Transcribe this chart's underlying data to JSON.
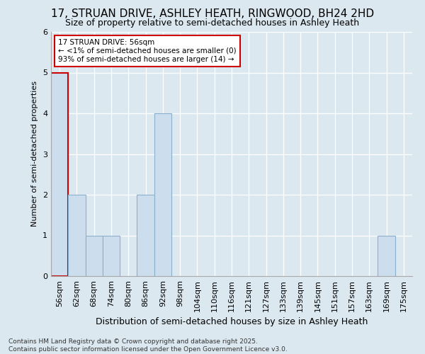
{
  "title": "17, STRUAN DRIVE, ASHLEY HEATH, RINGWOOD, BH24 2HD",
  "subtitle": "Size of property relative to semi-detached houses in Ashley Heath",
  "xlabel": "Distribution of semi-detached houses by size in Ashley Heath",
  "ylabel": "Number of semi-detached properties",
  "footnote": "Contains HM Land Registry data © Crown copyright and database right 2025.\nContains public sector information licensed under the Open Government Licence v3.0.",
  "categories": [
    "56sqm",
    "62sqm",
    "68sqm",
    "74sqm",
    "80sqm",
    "86sqm",
    "92sqm",
    "98sqm",
    "104sqm",
    "110sqm",
    "116sqm",
    "121sqm",
    "127sqm",
    "133sqm",
    "139sqm",
    "145sqm",
    "151sqm",
    "157sqm",
    "163sqm",
    "169sqm",
    "175sqm"
  ],
  "values": [
    5,
    2,
    1,
    1,
    0,
    2,
    4,
    0,
    0,
    0,
    0,
    0,
    0,
    0,
    0,
    0,
    0,
    0,
    0,
    1,
    0
  ],
  "bar_color": "#ccdded",
  "bar_edge_color": "#8ab0cc",
  "highlight_index": 0,
  "highlight_edge_color": "#cc0000",
  "annotation_line1": "17 STRUAN DRIVE: 56sqm",
  "annotation_line2": "← <1% of semi-detached houses are smaller (0)",
  "annotation_line3": "93% of semi-detached houses are larger (14) →",
  "annotation_box_color": "white",
  "annotation_box_edge": "#cc0000",
  "ylim": [
    0,
    6
  ],
  "yticks": [
    0,
    1,
    2,
    3,
    4,
    5,
    6
  ],
  "background_color": "#dce8f0",
  "title_fontsize": 11,
  "subtitle_fontsize": 9,
  "ylabel_fontsize": 8,
  "xlabel_fontsize": 9,
  "tick_fontsize": 8,
  "footnote_fontsize": 6.5
}
